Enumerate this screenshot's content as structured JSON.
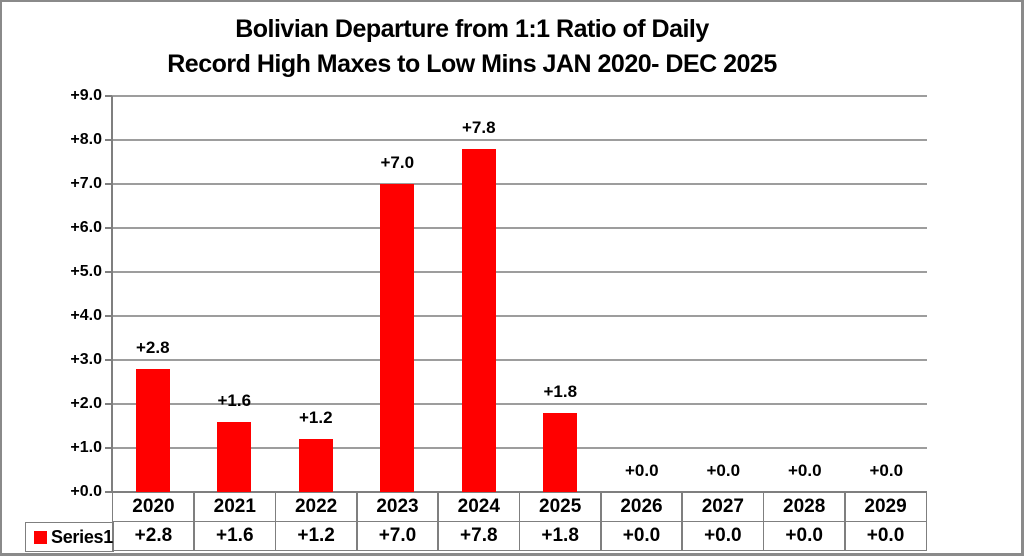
{
  "title": {
    "line1": "Bolivian Departure from 1:1 Ratio of Daily",
    "line2": "Record High Maxes to Low Mins JAN 2020- DEC 2025"
  },
  "legend": {
    "label": "Series1",
    "swatch_color": "#ff0000"
  },
  "chart_data": {
    "type": "bar",
    "title": "Bolivian Departure from 1:1 Ratio of Daily Record High Maxes to Low Mins JAN 2020- DEC 2025",
    "categories": [
      "2020",
      "2021",
      "2022",
      "2023",
      "2024",
      "2025",
      "2026",
      "2027",
      "2028",
      "2029"
    ],
    "series": [
      {
        "name": "Series1",
        "values": [
          2.8,
          1.6,
          1.2,
          7.0,
          7.8,
          1.8,
          0.0,
          0.0,
          0.0,
          0.0
        ]
      }
    ],
    "data_labels": [
      "+2.8",
      "+1.6",
      "+1.2",
      "+7.0",
      "+7.8",
      "+1.8",
      "+0.0",
      "+0.0",
      "+0.0",
      "+0.0"
    ],
    "table_values": [
      "+2.8",
      "+1.6",
      "+1.2",
      "+7.0",
      "+7.8",
      "+1.8",
      "+0.0",
      "+0.0",
      "+0.0",
      "+0.0"
    ],
    "y_tick_labels": [
      "+0.0",
      "+1.0",
      "+2.0",
      "+3.0",
      "+4.0",
      "+5.0",
      "+6.0",
      "+7.0",
      "+8.0",
      "+9.0"
    ],
    "ylim": [
      0,
      9
    ],
    "y_step": 1.0,
    "grid": "horizontal",
    "legend_position": "bottom-left-table",
    "bar_color": "#ff0000",
    "gridline_color": "#9d9d9d",
    "axis_color": "#7f7f7f",
    "table_border_color": "#7f7f7f",
    "text_color": "#000000"
  }
}
